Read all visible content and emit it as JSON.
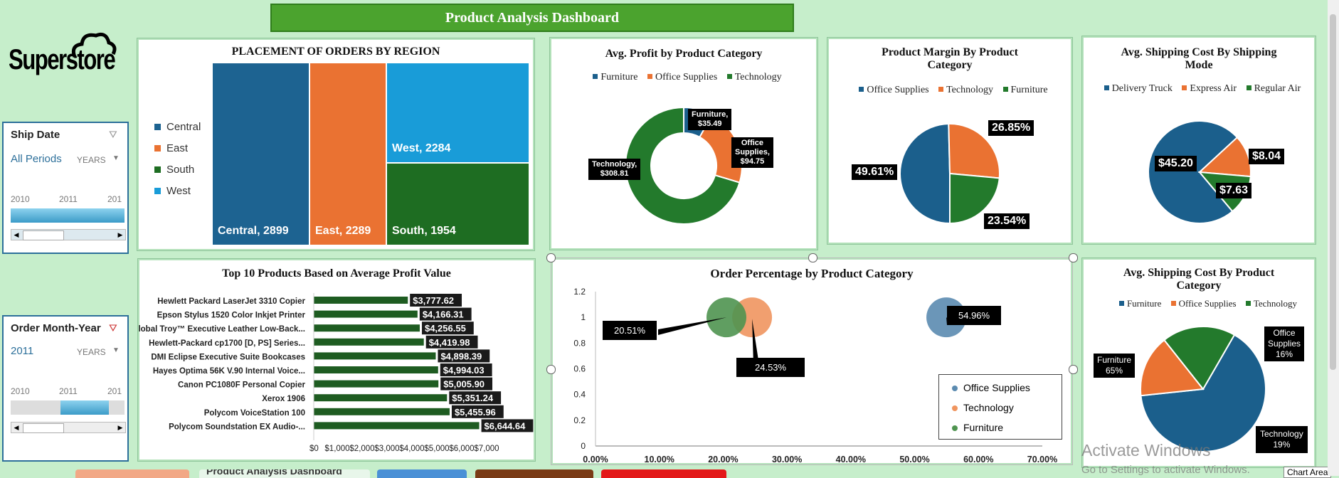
{
  "banner": "Product Analysis Dashboard",
  "logo": "Superstore",
  "slicers": {
    "ship_date": {
      "title": "Ship Date",
      "selected": "All Periods",
      "unit": "YEARS",
      "years": [
        "2010",
        "2011",
        "201"
      ]
    },
    "order_month": {
      "title": "Order Month-Year",
      "selected": "2011",
      "unit": "YEARS",
      "years": [
        "2010",
        "2011",
        "201"
      ]
    }
  },
  "treemap": {
    "title": "PLACEMENT OF ORDERS BY REGION",
    "legend": [
      "Central",
      "East",
      "South",
      "West"
    ],
    "labels": [
      "Central, 2899",
      "East, 2289",
      "West, 2284",
      "South, 1954"
    ],
    "colors": {
      "Central": "#1d6391",
      "East": "#ea7232",
      "South": "#1e6d22",
      "West": "#199cd8"
    }
  },
  "chart_data": [
    {
      "type": "treemap",
      "title": "PLACEMENT OF ORDERS BY REGION",
      "categories": [
        "Central",
        "East",
        "West",
        "South"
      ],
      "values": [
        2899,
        2289,
        2284,
        1954
      ]
    },
    {
      "type": "pie",
      "subtype": "donut",
      "title": "Avg. Profit by Product Category",
      "categories": [
        "Furniture",
        "Office Supplies",
        "Technology"
      ],
      "values": [
        35.49,
        94.75,
        308.81
      ]
    },
    {
      "type": "pie",
      "title": "Product Margin By Product Category",
      "categories": [
        "Office Supplies",
        "Technology",
        "Furniture"
      ],
      "values": [
        49.61,
        26.85,
        23.54
      ]
    },
    {
      "type": "pie",
      "title": "Avg. Shipping Cost By Shipping Mode",
      "categories": [
        "Delivery Truck",
        "Express Air",
        "Regular Air"
      ],
      "values": [
        45.2,
        8.04,
        7.63
      ]
    },
    {
      "type": "bar",
      "orientation": "horizontal",
      "title": "Top 10 Products Based on Average Profit Value",
      "categories": [
        "Hewlett Packard LaserJet 3310 Copier",
        "Epson Stylus 1520 Color Inkjet Printer",
        "Global Troy™ Executive Leather Low-Back...",
        "Hewlett-Packard cp1700 [D, PS] Series...",
        "DMI Eclipse Executive Suite Bookcases",
        "Hayes Optima 56K V.90 Internal Voice...",
        "Canon PC1080F Personal Copier",
        "Xerox 1906",
        "Polycom VoiceStation 100",
        "Polycom Soundstation EX Audio-..."
      ],
      "values": [
        3777.62,
        4166.31,
        4256.55,
        4419.98,
        4898.39,
        4994.03,
        5005.9,
        5351.24,
        5455.96,
        6644.64
      ],
      "xlim": [
        0,
        7000
      ]
    },
    {
      "type": "scatter",
      "subtype": "bubble",
      "title": "Order Percentage by Product Category",
      "series": [
        {
          "name": "Office Supplies",
          "x": [
            54.96
          ],
          "y": [
            1
          ]
        },
        {
          "name": "Technology",
          "x": [
            24.53
          ],
          "y": [
            1
          ]
        },
        {
          "name": "Furniture",
          "x": [
            20.51
          ],
          "y": [
            1
          ]
        }
      ],
      "xlim": [
        0,
        70
      ],
      "ylim": [
        0,
        1.2
      ]
    },
    {
      "type": "pie",
      "title": "Avg. Shipping Cost By Product Category",
      "categories": [
        "Furniture",
        "Office Supplies",
        "Technology"
      ],
      "values": [
        65,
        16,
        19
      ]
    }
  ],
  "donut": {
    "title": "Avg. Profit by Product Category",
    "legend": [
      "Furniture",
      "Office Supplies",
      "Technology"
    ],
    "labels": {
      "furn": [
        "Furniture,",
        "$35.49"
      ],
      "off": [
        "Office",
        "Supplies,",
        "$94.75"
      ],
      "tech": [
        "Technology,",
        "$308.81"
      ]
    }
  },
  "margin": {
    "title": [
      "Product Margin By Product",
      "Category"
    ],
    "legend": [
      "Office Supplies",
      "Technology",
      "Furniture"
    ],
    "labels": [
      "49.61%",
      "26.85%",
      "23.54%"
    ]
  },
  "shipmode": {
    "title": [
      "Avg.  Shipping Cost By Shipping",
      "Mode"
    ],
    "legend": [
      "Delivery Truck",
      "Express Air",
      "Regular Air"
    ],
    "labels": [
      "$45.20",
      "$8.04",
      "$7.63"
    ]
  },
  "topten": {
    "title": "Top 10 Products Based on Average Profit Value",
    "names": [
      "Hewlett Packard LaserJet 3310 Copier",
      "Epson Stylus 1520 Color Inkjet Printer",
      "Global Troy™ Executive Leather Low-Back...",
      "Hewlett-Packard cp1700 [D, PS] Series...",
      "DMI Eclipse Executive Suite Bookcases",
      "Hayes Optima 56K V.90 Internal Voice...",
      "Canon PC1080F Personal Copier",
      "Xerox 1906",
      "Polycom VoiceStation 100",
      "Polycom Soundstation EX Audio-..."
    ],
    "labels": [
      "$3,777.62",
      "$4,166.31",
      "$4,256.55",
      "$4,419.98",
      "$4,898.39",
      "$4,994.03",
      "$5,005.90",
      "$5,351.24",
      "$5,455.96",
      "$6,644.64"
    ],
    "ticks": [
      "$0",
      "$1,000",
      "$2,000",
      "$3,000",
      "$4,000",
      "$5,000",
      "$6,000",
      "$7,000"
    ]
  },
  "bubble": {
    "title": "Order Percentage by Product Category",
    "yticks": [
      "1.2",
      "1",
      "0.8",
      "0.6",
      "0.4",
      "0.2",
      "0"
    ],
    "xticks": [
      "0.00%",
      "10.00%",
      "20.00%",
      "30.00%",
      "40.00%",
      "50.00%",
      "60.00%",
      "70.00%"
    ],
    "labels": [
      "20.51%",
      "24.53%",
      "54.96%"
    ],
    "legend": [
      "Office Supplies",
      "Technology",
      "Furniture"
    ]
  },
  "shipcat": {
    "title": [
      "Avg.  Shipping Cost By Product",
      "Category"
    ],
    "legend": [
      "Furniture",
      "Office Supplies",
      "Technology"
    ],
    "labels": {
      "furn": [
        "Furniture",
        "65%"
      ],
      "off": [
        "Office",
        "Supplies",
        "16%"
      ],
      "tech": [
        "Technology",
        "19%"
      ]
    }
  },
  "watermark": {
    "line1": "Activate Windows",
    "line2": "Go to Settings to activate Windows.",
    "chart_area": "Chart Area"
  },
  "tabs": {
    "active": "Product Analysis Dashboard"
  },
  "colors": {
    "blue": "#1b5f8c",
    "orange": "#ea7232",
    "green": "#237a2c",
    "bar": "#1e5c21"
  }
}
